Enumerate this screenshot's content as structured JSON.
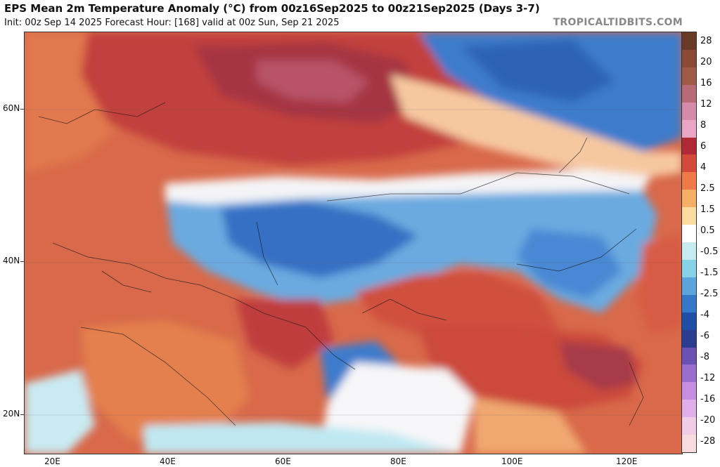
{
  "header": {
    "title": "EPS Mean 2m Temperature Anomaly (°C) from 00z16Sep2025 to 00z21Sep2025 (Days 3-7)",
    "subtitle": "Init: 00z Sep 14 2025   Forecast Hour: [168]   valid at 00z Sun, Sep 21 2025",
    "brand": "TROPICALTIDBITS.COM"
  },
  "axes": {
    "lat_labels": [
      "60N",
      "40N",
      "20N"
    ],
    "lon_labels": [
      "20E",
      "40E",
      "60E",
      "80E",
      "100E",
      "120E"
    ]
  },
  "colorbar": {
    "labels": [
      "28",
      "20",
      "16",
      "12",
      "8",
      "6",
      "4",
      "2.5",
      "1.5",
      "0.5",
      "-0.5",
      "-1.5",
      "-2.5",
      "-4",
      "-6",
      "-8",
      "-12",
      "-16",
      "-20",
      "-28"
    ],
    "colors": [
      "#6b3a26",
      "#8a4a36",
      "#a05a48",
      "#b86a76",
      "#d48aa8",
      "#e8a6c4",
      "#b02a36",
      "#d44a3a",
      "#ee7a4a",
      "#f6b066",
      "#fbdca0",
      "#ffffff",
      "#c6ecf2",
      "#86d2e6",
      "#5aa6dc",
      "#3478c8",
      "#1e4ea6",
      "#2b3d8e",
      "#6a52b4",
      "#9a6ed0",
      "#c68ee0",
      "#e0b0ea",
      "#f0cce6",
      "#f8dcdc"
    ]
  },
  "map": {
    "region": "Central and South Asia, Middle East, Eastern Europe",
    "colors": {
      "warm_base": "#d8694a",
      "warm_strong": "#b8363a",
      "hot_core": "#b85268",
      "mild_warm": "#f09a60",
      "neutral": "#ffffff",
      "cool": "#6aaae0",
      "cold": "#3068c0",
      "light_cool": "#bfe8f2"
    }
  }
}
